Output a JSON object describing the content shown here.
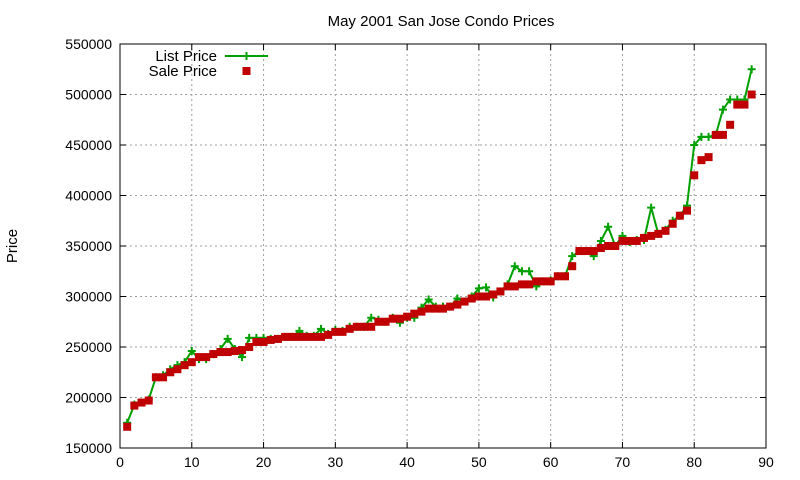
{
  "chart_data": {
    "type": "line",
    "title": "May 2001 San Jose Condo Prices",
    "xlabel": "",
    "ylabel": "Price",
    "xlim": [
      0,
      90
    ],
    "ylim": [
      150000,
      550000
    ],
    "grid": true,
    "legend_position": "top-left",
    "x_ticks": [
      "0",
      "10",
      "20",
      "30",
      "40",
      "50",
      "60",
      "70",
      "80",
      "90"
    ],
    "y_ticks": [
      "150000",
      "200000",
      "250000",
      "300000",
      "350000",
      "400000",
      "450000",
      "500000",
      "550000"
    ],
    "series": [
      {
        "name": "List Price",
        "style": "lines+points",
        "marker": "plus",
        "color": "#00a000",
        "x": [
          1,
          2,
          3,
          4,
          5,
          6,
          7,
          8,
          9,
          10,
          11,
          12,
          13,
          14,
          15,
          16,
          17,
          18,
          19,
          20,
          21,
          22,
          23,
          24,
          25,
          26,
          27,
          28,
          29,
          30,
          31,
          32,
          33,
          34,
          35,
          36,
          37,
          38,
          39,
          40,
          41,
          42,
          43,
          44,
          45,
          46,
          47,
          48,
          49,
          50,
          51,
          52,
          53,
          54,
          55,
          56,
          57,
          58,
          59,
          60,
          61,
          62,
          63,
          64,
          65,
          66,
          67,
          68,
          69,
          70,
          71,
          72,
          73,
          74,
          75,
          76,
          77,
          78,
          79,
          80,
          81,
          82,
          83,
          84,
          85,
          86,
          87,
          88
        ],
        "values": [
          175000,
          193000,
          195000,
          198000,
          220000,
          222000,
          228000,
          232000,
          235000,
          246000,
          238000,
          238000,
          243000,
          248000,
          258000,
          248000,
          240000,
          259000,
          259000,
          259000,
          258000,
          258000,
          260000,
          260000,
          266000,
          261000,
          261000,
          268000,
          263000,
          267000,
          266000,
          270000,
          270000,
          270000,
          279000,
          277000,
          275000,
          279000,
          274000,
          279000,
          279000,
          289000,
          297000,
          290000,
          290000,
          290000,
          298000,
          295000,
          300000,
          308000,
          309000,
          299000,
          305000,
          312000,
          330000,
          325000,
          325000,
          310000,
          315000,
          316000,
          320000,
          320000,
          340000,
          345000,
          345000,
          340000,
          355000,
          369000,
          350000,
          360000,
          354000,
          356000,
          356000,
          388000,
          362000,
          366000,
          375000,
          380000,
          390000,
          450000,
          458000,
          458000,
          460000,
          485000,
          495000,
          495000,
          495000,
          525000
        ]
      },
      {
        "name": "Sale Price",
        "style": "points",
        "marker": "square",
        "color": "#c00000",
        "x": [
          1,
          2,
          3,
          4,
          5,
          6,
          7,
          8,
          9,
          10,
          11,
          12,
          13,
          14,
          15,
          16,
          17,
          18,
          19,
          20,
          21,
          22,
          23,
          24,
          25,
          26,
          27,
          28,
          29,
          30,
          31,
          32,
          33,
          34,
          35,
          36,
          37,
          38,
          39,
          40,
          41,
          42,
          43,
          44,
          45,
          46,
          47,
          48,
          49,
          50,
          51,
          52,
          53,
          54,
          55,
          56,
          57,
          58,
          59,
          60,
          61,
          62,
          63,
          64,
          65,
          66,
          67,
          68,
          69,
          70,
          71,
          72,
          73,
          74,
          75,
          76,
          77,
          78,
          79,
          80,
          81,
          82,
          83,
          84,
          85,
          86,
          87,
          88
        ],
        "values": [
          171000,
          192000,
          195000,
          197000,
          220000,
          220000,
          225000,
          228000,
          232000,
          235000,
          240000,
          240000,
          243000,
          245000,
          245000,
          246000,
          247000,
          250000,
          255000,
          255000,
          257000,
          258000,
          260000,
          260000,
          260000,
          260000,
          260000,
          260000,
          262000,
          265000,
          265000,
          268000,
          270000,
          270000,
          270000,
          275000,
          275000,
          278000,
          278000,
          280000,
          283000,
          285000,
          288000,
          288000,
          288000,
          290000,
          292000,
          295000,
          298000,
          300000,
          300000,
          302000,
          305000,
          310000,
          310000,
          312000,
          312000,
          315000,
          315000,
          315000,
          320000,
          320000,
          330000,
          345000,
          345000,
          345000,
          348000,
          350000,
          350000,
          355000,
          355000,
          355000,
          358000,
          360000,
          362000,
          365000,
          372000,
          380000,
          385000,
          420000,
          435000,
          438000,
          460000,
          460000,
          470000,
          490000,
          490000,
          500000
        ]
      }
    ]
  }
}
